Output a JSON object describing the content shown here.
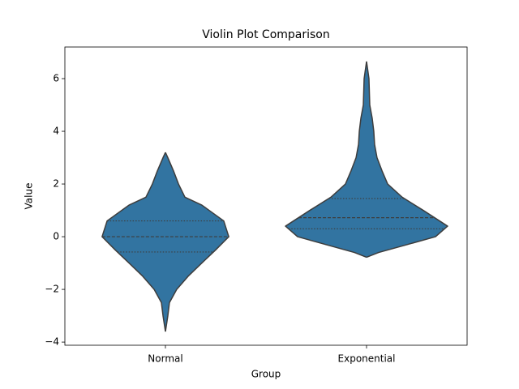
{
  "chart_data": {
    "type": "violin",
    "title": "Violin Plot Comparison",
    "xlabel": "Group",
    "ylabel": "Value",
    "categories": [
      "Normal",
      "Exponential"
    ],
    "color": "#3274a1",
    "ylim": [
      -4.12,
      7.2
    ],
    "yticks": [
      {
        "value": -4,
        "label": "−4"
      },
      {
        "value": -2,
        "label": "−2"
      },
      0,
      2,
      4,
      6
    ],
    "violins": [
      {
        "y": [
          3.2,
          3.0,
          2.5,
          2.0,
          1.5,
          1.2,
          0.6,
          0,
          -0.5,
          -1,
          -1.5,
          -2,
          -2.5,
          -3,
          -3.6
        ],
        "widths": [
          0,
          0.012,
          0.04,
          0.065,
          0.097,
          0.181,
          0.29,
          0.315,
          0.25,
          0.181,
          0.113,
          0.056,
          0.02,
          0.012,
          0
        ],
        "quartiles": [
          -0.58,
          0.0,
          0.6
        ]
      },
      {
        "y": [
          6.65,
          6,
          5,
          4.5,
          4,
          3.5,
          3,
          2.5,
          2,
          1.5,
          1,
          0.5,
          0.4,
          0,
          -0.3,
          -0.6,
          -0.78
        ],
        "widths": [
          0,
          0.012,
          0.016,
          0.028,
          0.036,
          0.04,
          0.052,
          0.077,
          0.105,
          0.177,
          0.282,
          0.383,
          0.403,
          0.343,
          0.202,
          0.06,
          0
        ],
        "quartiles": [
          0.3,
          0.72,
          1.45
        ]
      }
    ]
  }
}
